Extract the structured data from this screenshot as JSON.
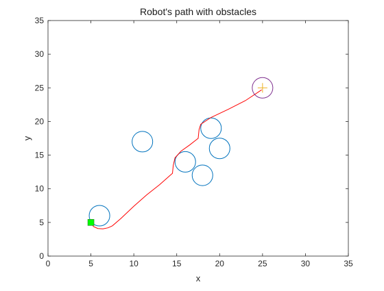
{
  "chart_data": {
    "type": "scatter",
    "title": "Robot's path with obstacles",
    "xlabel": "x",
    "ylabel": "y",
    "xlim": [
      0,
      35
    ],
    "ylim": [
      0,
      35
    ],
    "xticks": [
      0,
      5,
      10,
      15,
      20,
      25,
      30,
      35
    ],
    "yticks": [
      0,
      5,
      10,
      15,
      20,
      25,
      30,
      35
    ],
    "grid": false,
    "obstacles": [
      {
        "x": 6,
        "y": 6,
        "r": 1.2
      },
      {
        "x": 11,
        "y": 17,
        "r": 1.2
      },
      {
        "x": 16,
        "y": 14,
        "r": 1.2
      },
      {
        "x": 18,
        "y": 12,
        "r": 1.2
      },
      {
        "x": 19,
        "y": 19,
        "r": 1.2
      },
      {
        "x": 20,
        "y": 16,
        "r": 1.2
      }
    ],
    "start": {
      "x": 5,
      "y": 5
    },
    "goal": {
      "x": 25,
      "y": 25,
      "r": 1.2
    },
    "path": {
      "x": [
        5,
        5.3,
        5.8,
        6.4,
        7.0,
        7.5,
        8.5,
        10,
        11.5,
        13,
        14.5,
        14.6,
        14.8,
        15.5,
        16.5,
        17.5,
        17.6,
        17.8,
        19.0,
        21,
        23,
        24.9
      ],
      "y": [
        5,
        4.4,
        4.1,
        4.05,
        4.2,
        4.5,
        5.6,
        7.4,
        9.1,
        10.6,
        12.3,
        13.5,
        14.6,
        15.6,
        16.5,
        17.5,
        18.8,
        19.6,
        20.6,
        21.8,
        23.1,
        24.7
      ]
    },
    "colors": {
      "obstacle": "#0072bd",
      "path": "#ff0000",
      "start": "#00ff00",
      "goal_circle": "#7e2f8e",
      "goal_marker": "#edb120",
      "axes": "#262626"
    }
  }
}
